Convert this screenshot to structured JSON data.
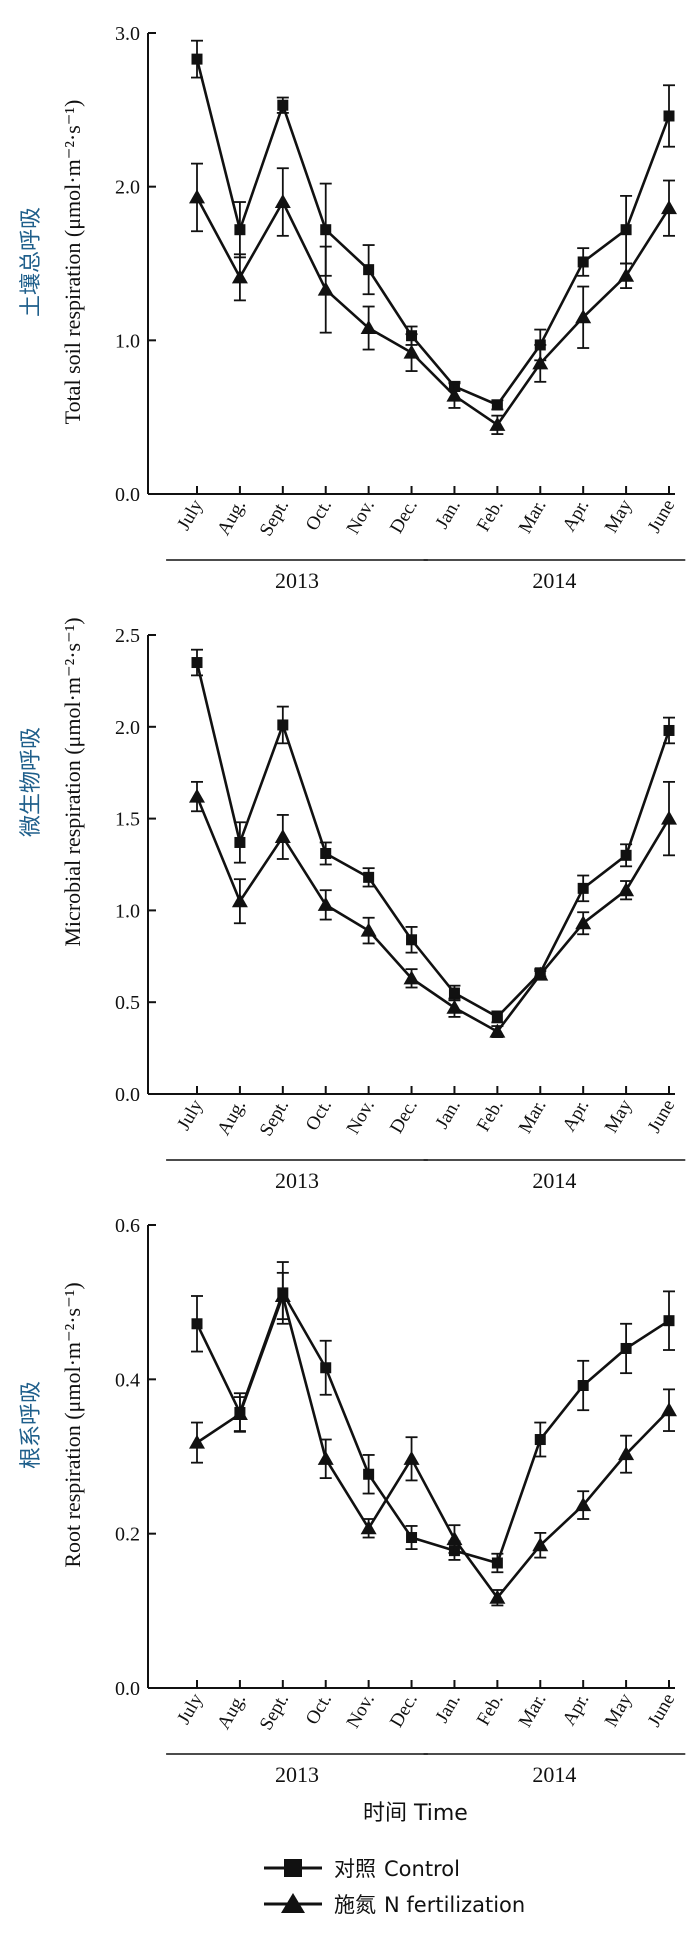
{
  "colors": {
    "line": "#111111",
    "chinese_label": "#1f5f8b"
  },
  "x_label": {
    "cn": "时间",
    "en": "Time"
  },
  "legend": [
    {
      "cn": "对照",
      "en": "Control",
      "marker": "square"
    },
    {
      "cn": "施氮",
      "en": "N fertilization",
      "marker": "triangle"
    }
  ],
  "chart_data": [
    {
      "type": "line",
      "ylabel_cn": "土壤总呼吸",
      "ylabel_en": "Total soil respiration (μmol·m⁻²·s⁻¹)",
      "ylim": [
        0,
        3.0
      ],
      "yticks": [
        "0.0",
        "1.0",
        "2.0",
        "3.0"
      ],
      "categories": [
        "July",
        "Aug.",
        "Sept.",
        "Oct.",
        "Nov.",
        "Dec.",
        "Jan.",
        "Feb.",
        "Mar.",
        "Apr.",
        "May",
        "June"
      ],
      "year_groups": [
        {
          "label": "2013",
          "from": 0,
          "to": 5
        },
        {
          "label": "2014",
          "from": 6,
          "to": 11
        }
      ],
      "series": [
        {
          "name": "Control",
          "marker": "square",
          "values": [
            2.83,
            1.72,
            2.53,
            1.72,
            1.46,
            1.03,
            0.7,
            0.58,
            0.97,
            1.51,
            1.72,
            2.46
          ],
          "errors": [
            0.12,
            0.18,
            0.05,
            0.3,
            0.16,
            0.06,
            0.03,
            0.03,
            0.1,
            0.09,
            0.22,
            0.2
          ]
        },
        {
          "name": "N fertilization",
          "marker": "triangle",
          "values": [
            1.93,
            1.41,
            1.9,
            1.33,
            1.08,
            0.92,
            0.64,
            0.45,
            0.85,
            1.15,
            1.42,
            1.86
          ],
          "errors": [
            0.22,
            0.15,
            0.22,
            0.28,
            0.14,
            0.12,
            0.08,
            0.06,
            0.12,
            0.2,
            0.08,
            0.18
          ]
        }
      ]
    },
    {
      "type": "line",
      "ylabel_cn": "微生物呼吸",
      "ylabel_en": "Microbial respiration (μmol·m⁻²·s⁻¹)",
      "ylim": [
        0,
        2.5
      ],
      "yticks": [
        "0.0",
        "0.5",
        "1.0",
        "1.5",
        "2.0",
        "2.5"
      ],
      "categories": [
        "July",
        "Aug.",
        "Sept.",
        "Oct.",
        "Nov.",
        "Dec.",
        "Jan.",
        "Feb.",
        "Mar.",
        "Apr.",
        "May",
        "June"
      ],
      "year_groups": [
        {
          "label": "2013",
          "from": 0,
          "to": 5
        },
        {
          "label": "2014",
          "from": 6,
          "to": 11
        }
      ],
      "series": [
        {
          "name": "Control",
          "marker": "square",
          "values": [
            2.35,
            1.37,
            2.01,
            1.31,
            1.18,
            0.84,
            0.55,
            0.42,
            0.66,
            1.12,
            1.3,
            1.98
          ],
          "errors": [
            0.07,
            0.11,
            0.1,
            0.06,
            0.05,
            0.07,
            0.04,
            0.03,
            0.02,
            0.07,
            0.06,
            0.07
          ]
        },
        {
          "name": "N fertilization",
          "marker": "triangle",
          "values": [
            1.62,
            1.05,
            1.4,
            1.03,
            0.89,
            0.63,
            0.47,
            0.34,
            0.65,
            0.93,
            1.11,
            1.5
          ],
          "errors": [
            0.08,
            0.12,
            0.12,
            0.08,
            0.07,
            0.05,
            0.05,
            0.03,
            0.02,
            0.06,
            0.05,
            0.2
          ]
        }
      ]
    },
    {
      "type": "line",
      "ylabel_cn": "根系呼吸",
      "ylabel_en": "Root respiration (μmol·m⁻²·s⁻¹)",
      "ylim": [
        0,
        0.6
      ],
      "yticks": [
        "0.0",
        "0.2",
        "0.4",
        "0.6"
      ],
      "categories": [
        "July",
        "Aug.",
        "Sept.",
        "Oct.",
        "Nov.",
        "Dec.",
        "Jan.",
        "Feb.",
        "Mar.",
        "Apr.",
        "May",
        "June"
      ],
      "year_groups": [
        {
          "label": "2013",
          "from": 0,
          "to": 5
        },
        {
          "label": "2014",
          "from": 6,
          "to": 11
        }
      ],
      "series": [
        {
          "name": "Control",
          "marker": "square",
          "values": [
            0.472,
            0.357,
            0.512,
            0.415,
            0.277,
            0.195,
            0.178,
            0.162,
            0.322,
            0.392,
            0.44,
            0.476
          ],
          "errors": [
            0.036,
            0.025,
            0.04,
            0.035,
            0.025,
            0.015,
            0.012,
            0.012,
            0.022,
            0.032,
            0.032,
            0.038
          ]
        },
        {
          "name": "N fertilization",
          "marker": "triangle",
          "values": [
            0.318,
            0.355,
            0.508,
            0.297,
            0.207,
            0.297,
            0.193,
            0.117,
            0.185,
            0.237,
            0.303,
            0.36
          ],
          "errors": [
            0.026,
            0.022,
            0.03,
            0.025,
            0.012,
            0.028,
            0.018,
            0.01,
            0.016,
            0.018,
            0.024,
            0.027
          ]
        }
      ]
    }
  ]
}
